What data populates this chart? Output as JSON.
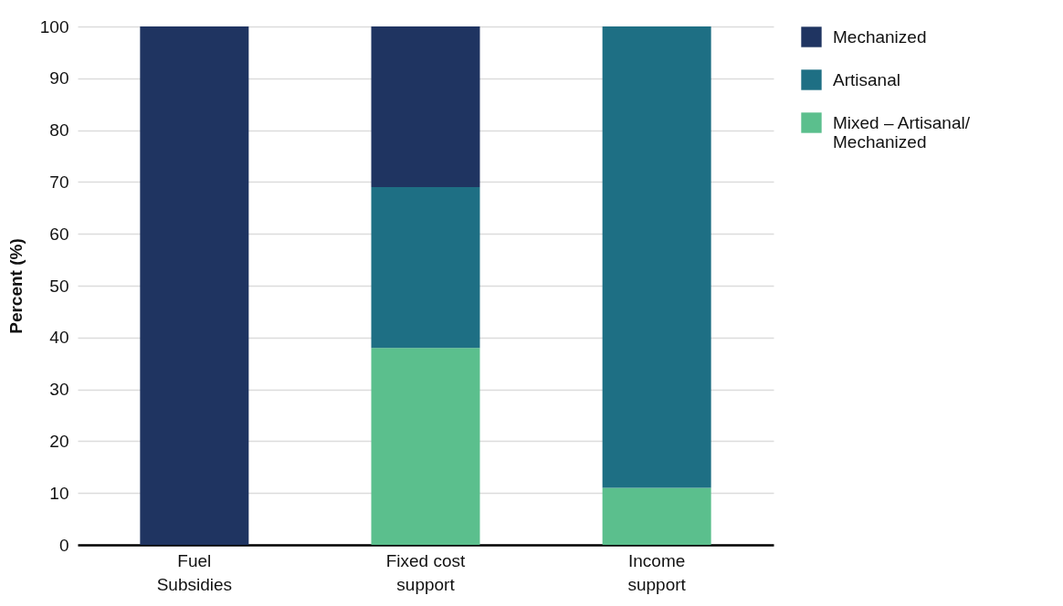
{
  "chart_data": {
    "type": "bar",
    "stacked": true,
    "ylabel": "Percent (%)",
    "categories": [
      "Fuel Subsidies",
      "Fixed cost support",
      "Income support"
    ],
    "series": [
      {
        "name": "Mixed – Artisanal/ Mechanized",
        "color": "#5bbf8d",
        "values": [
          0,
          38,
          11
        ]
      },
      {
        "name": "Artisanal",
        "color": "#1e6f84",
        "values": [
          0,
          31,
          89
        ]
      },
      {
        "name": "Mechanized",
        "color": "#1f3461",
        "values": [
          100,
          31,
          0
        ]
      }
    ],
    "ylim": [
      0,
      100
    ],
    "yticks": [
      0,
      10,
      20,
      30,
      40,
      50,
      60,
      70,
      80,
      90,
      100
    ],
    "grid": "y",
    "legend": "right"
  }
}
